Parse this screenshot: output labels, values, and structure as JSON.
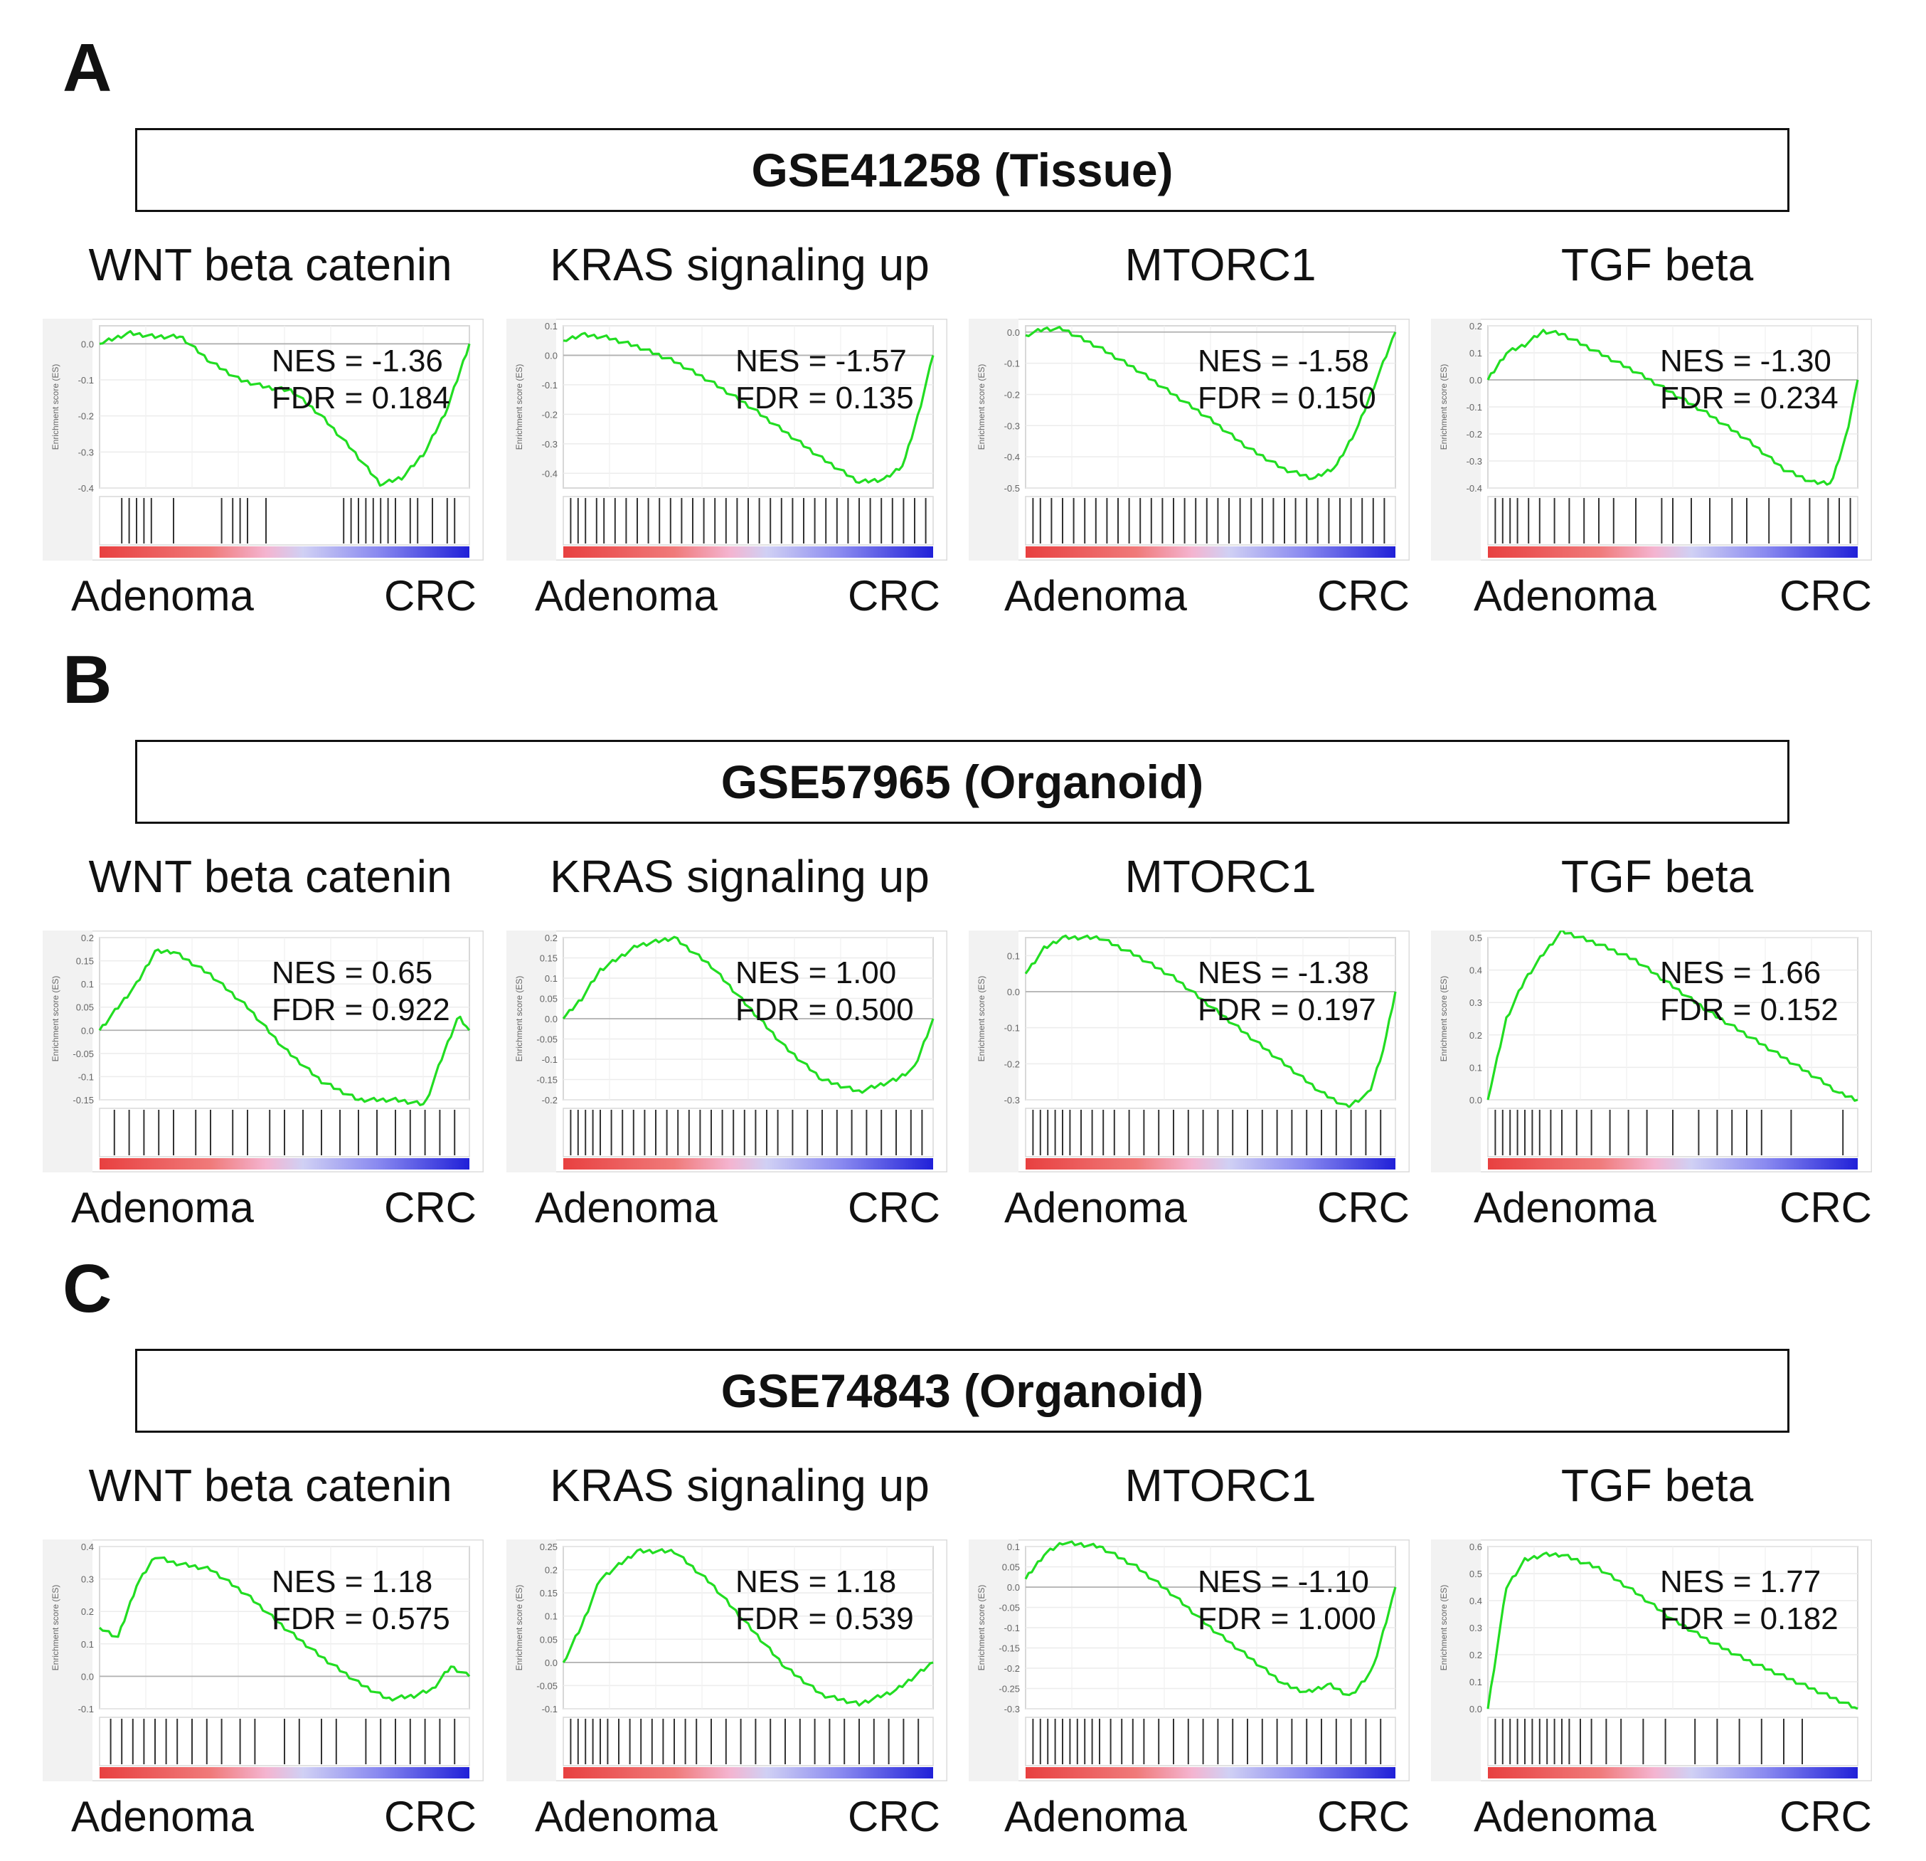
{
  "panels": [
    {
      "letter": "A",
      "dataset": "GSE41258 (Tissue)",
      "plots": [
        {
          "title": "WNT beta catenin",
          "nes": "NES = -1.36",
          "fdr": "FDR = 0.184",
          "left": "Adenoma",
          "right": "CRC"
        },
        {
          "title": "KRAS signaling up",
          "nes": "NES = -1.57",
          "fdr": "FDR = 0.135",
          "left": "Adenoma",
          "right": "CRC"
        },
        {
          "title": "MTORC1",
          "nes": "NES = -1.58",
          "fdr": "FDR = 0.150",
          "left": "Adenoma",
          "right": "CRC"
        },
        {
          "title": "TGF beta",
          "nes": "NES = -1.30",
          "fdr": "FDR = 0.234",
          "left": "Adenoma",
          "right": "CRC"
        }
      ]
    },
    {
      "letter": "B",
      "dataset": "GSE57965 (Organoid)",
      "plots": [
        {
          "title": "WNT beta catenin",
          "nes": "NES = 0.65",
          "fdr": "FDR = 0.922",
          "left": "Adenoma",
          "right": "CRC"
        },
        {
          "title": "KRAS signaling up",
          "nes": "NES = 1.00",
          "fdr": "FDR = 0.500",
          "left": "Adenoma",
          "right": "CRC"
        },
        {
          "title": "MTORC1",
          "nes": "NES = -1.38",
          "fdr": "FDR = 0.197",
          "left": "Adenoma",
          "right": "CRC"
        },
        {
          "title": "TGF beta",
          "nes": "NES = 1.66",
          "fdr": "FDR = 0.152",
          "left": "Adenoma",
          "right": "CRC"
        }
      ]
    },
    {
      "letter": "C",
      "dataset": "GSE74843 (Organoid)",
      "plots": [
        {
          "title": "WNT beta catenin",
          "nes": "NES = 1.18",
          "fdr": "FDR = 0.575",
          "left": "Adenoma",
          "right": "CRC"
        },
        {
          "title": "KRAS signaling up",
          "nes": "NES = 1.18",
          "fdr": "FDR = 0.539",
          "left": "Adenoma",
          "right": "CRC"
        },
        {
          "title": "MTORC1",
          "nes": "NES = -1.10",
          "fdr": "FDR = 1.000",
          "left": "Adenoma",
          "right": "CRC"
        },
        {
          "title": "TGF beta",
          "nes": "NES = 1.77",
          "fdr": "FDR = 0.182",
          "left": "Adenoma",
          "right": "CRC"
        }
      ]
    }
  ],
  "chart_data": [
    {
      "type": "line",
      "panel": "A",
      "title": "WNT beta catenin",
      "ylabel": "Enrichment score (ES)",
      "ylim": [
        -0.4,
        0.05
      ],
      "yticks": [
        0.0,
        -0.1,
        -0.2,
        -0.3,
        -0.4
      ],
      "x": [
        0,
        0.08,
        0.15,
        0.22,
        0.3,
        0.38,
        0.45,
        0.52,
        0.6,
        0.68,
        0.76,
        0.82,
        0.88,
        0.94,
        1.0
      ],
      "es": [
        0.0,
        0.03,
        0.02,
        0.02,
        -0.05,
        -0.1,
        -0.12,
        -0.13,
        -0.2,
        -0.29,
        -0.39,
        -0.37,
        -0.3,
        -0.18,
        0.0
      ],
      "hits": [
        0.06,
        0.08,
        0.1,
        0.12,
        0.14,
        0.2,
        0.33,
        0.36,
        0.38,
        0.4,
        0.45,
        0.66,
        0.68,
        0.7,
        0.72,
        0.74,
        0.76,
        0.78,
        0.8,
        0.84,
        0.86,
        0.9,
        0.94,
        0.96
      ]
    },
    {
      "type": "line",
      "panel": "A",
      "title": "KRAS signaling up",
      "ylabel": "Enrichment score (ES)",
      "ylim": [
        -0.45,
        0.1
      ],
      "yticks": [
        0.1,
        0.0,
        -0.1,
        -0.2,
        -0.3,
        -0.4
      ],
      "x": [
        0,
        0.05,
        0.12,
        0.2,
        0.3,
        0.4,
        0.5,
        0.6,
        0.7,
        0.8,
        0.87,
        0.92,
        0.96,
        1.0
      ],
      "es": [
        0.05,
        0.07,
        0.06,
        0.03,
        -0.02,
        -0.09,
        -0.17,
        -0.26,
        -0.35,
        -0.43,
        -0.42,
        -0.37,
        -0.2,
        0.0
      ],
      "hits": [
        0.02,
        0.04,
        0.06,
        0.09,
        0.11,
        0.14,
        0.17,
        0.2,
        0.23,
        0.26,
        0.29,
        0.32,
        0.35,
        0.38,
        0.41,
        0.44,
        0.47,
        0.5,
        0.53,
        0.56,
        0.59,
        0.62,
        0.65,
        0.68,
        0.71,
        0.74,
        0.77,
        0.8,
        0.83,
        0.86,
        0.89,
        0.92,
        0.95,
        0.98
      ]
    },
    {
      "type": "line",
      "panel": "A",
      "title": "MTORC1",
      "ylabel": "Enrichment score (ES)",
      "ylim": [
        -0.5,
        0.02
      ],
      "yticks": [
        0.0,
        -0.1,
        -0.2,
        -0.3,
        -0.4,
        -0.5
      ],
      "x": [
        0,
        0.05,
        0.1,
        0.2,
        0.3,
        0.4,
        0.5,
        0.6,
        0.7,
        0.78,
        0.84,
        0.9,
        0.95,
        1.0
      ],
      "es": [
        -0.01,
        0.01,
        0.01,
        -0.05,
        -0.12,
        -0.2,
        -0.28,
        -0.37,
        -0.44,
        -0.47,
        -0.43,
        -0.3,
        -0.15,
        0.0
      ],
      "hits": [
        0.02,
        0.04,
        0.07,
        0.1,
        0.13,
        0.16,
        0.19,
        0.22,
        0.25,
        0.28,
        0.31,
        0.34,
        0.37,
        0.4,
        0.43,
        0.46,
        0.49,
        0.52,
        0.55,
        0.58,
        0.61,
        0.64,
        0.67,
        0.7,
        0.73,
        0.76,
        0.79,
        0.82,
        0.85,
        0.88,
        0.91,
        0.94,
        0.97
      ]
    },
    {
      "type": "line",
      "panel": "A",
      "title": "TGF beta",
      "ylabel": "Enrichment score (ES)",
      "ylim": [
        -0.4,
        0.2
      ],
      "yticks": [
        0.2,
        0.1,
        0.0,
        -0.1,
        -0.2,
        -0.3,
        -0.4
      ],
      "x": [
        0,
        0.05,
        0.1,
        0.15,
        0.2,
        0.3,
        0.4,
        0.5,
        0.6,
        0.7,
        0.8,
        0.88,
        0.93,
        0.97,
        1.0
      ],
      "es": [
        0.0,
        0.1,
        0.13,
        0.18,
        0.17,
        0.1,
        0.03,
        -0.05,
        -0.13,
        -0.22,
        -0.33,
        -0.38,
        -0.38,
        -0.2,
        0.0
      ],
      "hits": [
        0.02,
        0.04,
        0.06,
        0.08,
        0.11,
        0.14,
        0.18,
        0.22,
        0.26,
        0.3,
        0.34,
        0.4,
        0.47,
        0.5,
        0.55,
        0.6,
        0.66,
        0.7,
        0.76,
        0.82,
        0.87,
        0.92,
        0.95,
        0.98
      ]
    },
    {
      "type": "line",
      "panel": "B",
      "title": "WNT beta catenin",
      "ylabel": "Enrichment score (ES)",
      "ylim": [
        -0.15,
        0.2
      ],
      "yticks": [
        0.2,
        0.15,
        0.1,
        0.05,
        0.0,
        -0.05,
        -0.1,
        -0.15
      ],
      "x": [
        0,
        0.05,
        0.1,
        0.15,
        0.2,
        0.3,
        0.4,
        0.5,
        0.6,
        0.7,
        0.8,
        0.88,
        0.93,
        0.97,
        1.0
      ],
      "es": [
        0.0,
        0.05,
        0.1,
        0.17,
        0.17,
        0.12,
        0.05,
        -0.04,
        -0.11,
        -0.15,
        -0.15,
        -0.16,
        -0.05,
        0.03,
        0.0
      ],
      "hits": [
        0.04,
        0.08,
        0.12,
        0.16,
        0.2,
        0.26,
        0.3,
        0.36,
        0.4,
        0.46,
        0.5,
        0.55,
        0.6,
        0.65,
        0.7,
        0.75,
        0.8,
        0.84,
        0.88,
        0.92,
        0.96
      ]
    },
    {
      "type": "line",
      "panel": "B",
      "title": "KRAS signaling up",
      "ylabel": "Enrichment score (ES)",
      "ylim": [
        -0.2,
        0.2
      ],
      "yticks": [
        0.2,
        0.15,
        0.1,
        0.05,
        0.0,
        -0.05,
        -0.1,
        -0.15,
        -0.2
      ],
      "x": [
        0,
        0.05,
        0.1,
        0.2,
        0.3,
        0.4,
        0.5,
        0.6,
        0.7,
        0.8,
        0.9,
        0.95,
        1.0
      ],
      "es": [
        0.0,
        0.05,
        0.12,
        0.18,
        0.2,
        0.13,
        0.03,
        -0.07,
        -0.15,
        -0.18,
        -0.15,
        -0.12,
        0.0
      ],
      "hits": [
        0.02,
        0.04,
        0.06,
        0.08,
        0.1,
        0.13,
        0.16,
        0.19,
        0.22,
        0.25,
        0.28,
        0.31,
        0.34,
        0.37,
        0.4,
        0.43,
        0.46,
        0.49,
        0.52,
        0.55,
        0.58,
        0.62,
        0.66,
        0.7,
        0.74,
        0.78,
        0.82,
        0.86,
        0.9,
        0.94,
        0.97
      ]
    },
    {
      "type": "line",
      "panel": "B",
      "title": "MTORC1",
      "ylabel": "Enrichment score (ES)",
      "ylim": [
        -0.3,
        0.15
      ],
      "yticks": [
        0.1,
        0.0,
        -0.1,
        -0.2,
        -0.3
      ],
      "x": [
        0,
        0.05,
        0.1,
        0.2,
        0.3,
        0.4,
        0.5,
        0.6,
        0.7,
        0.8,
        0.87,
        0.93,
        0.97,
        1.0
      ],
      "es": [
        0.05,
        0.12,
        0.15,
        0.15,
        0.1,
        0.04,
        -0.04,
        -0.12,
        -0.2,
        -0.28,
        -0.32,
        -0.28,
        -0.15,
        0.0
      ],
      "hits": [
        0.02,
        0.04,
        0.06,
        0.08,
        0.1,
        0.12,
        0.15,
        0.18,
        0.21,
        0.24,
        0.28,
        0.32,
        0.36,
        0.4,
        0.44,
        0.48,
        0.52,
        0.56,
        0.6,
        0.64,
        0.68,
        0.72,
        0.76,
        0.8,
        0.84,
        0.88,
        0.92,
        0.96
      ]
    },
    {
      "type": "line",
      "panel": "B",
      "title": "TGF beta",
      "ylabel": "Enrichment score (ES)",
      "ylim": [
        0.0,
        0.5
      ],
      "yticks": [
        0.5,
        0.4,
        0.3,
        0.2,
        0.1,
        0.0
      ],
      "x": [
        0,
        0.05,
        0.1,
        0.15,
        0.2,
        0.3,
        0.4,
        0.5,
        0.6,
        0.7,
        0.8,
        0.9,
        0.95,
        1.0
      ],
      "es": [
        0.0,
        0.25,
        0.37,
        0.45,
        0.52,
        0.48,
        0.43,
        0.35,
        0.27,
        0.2,
        0.13,
        0.06,
        0.02,
        0.0
      ],
      "hits": [
        0.02,
        0.04,
        0.06,
        0.08,
        0.1,
        0.12,
        0.14,
        0.17,
        0.2,
        0.24,
        0.28,
        0.33,
        0.38,
        0.43,
        0.5,
        0.57,
        0.62,
        0.66,
        0.7,
        0.74,
        0.82,
        0.96
      ]
    },
    {
      "type": "line",
      "panel": "C",
      "title": "WNT beta catenin",
      "ylabel": "Enrichment score (ES)",
      "ylim": [
        -0.1,
        0.4
      ],
      "yticks": [
        0.4,
        0.3,
        0.2,
        0.1,
        0.0,
        -0.1
      ],
      "x": [
        0,
        0.05,
        0.1,
        0.15,
        0.2,
        0.3,
        0.4,
        0.5,
        0.6,
        0.7,
        0.78,
        0.85,
        0.9,
        0.95,
        1.0
      ],
      "es": [
        0.15,
        0.12,
        0.28,
        0.37,
        0.35,
        0.33,
        0.25,
        0.15,
        0.06,
        -0.02,
        -0.07,
        -0.06,
        -0.04,
        0.03,
        0.0
      ],
      "hits": [
        0.03,
        0.06,
        0.09,
        0.12,
        0.15,
        0.18,
        0.21,
        0.25,
        0.29,
        0.33,
        0.38,
        0.42,
        0.5,
        0.54,
        0.6,
        0.64,
        0.72,
        0.76,
        0.8,
        0.84,
        0.88,
        0.92,
        0.96
      ]
    },
    {
      "type": "line",
      "panel": "C",
      "title": "KRAS signaling up",
      "ylabel": "Enrichment score (ES)",
      "ylim": [
        -0.1,
        0.25
      ],
      "yticks": [
        0.25,
        0.2,
        0.15,
        0.1,
        0.05,
        0.0,
        -0.05,
        -0.1
      ],
      "x": [
        0,
        0.05,
        0.1,
        0.2,
        0.3,
        0.4,
        0.5,
        0.6,
        0.7,
        0.8,
        0.9,
        0.95,
        1.0
      ],
      "es": [
        0.0,
        0.08,
        0.18,
        0.24,
        0.24,
        0.17,
        0.08,
        -0.01,
        -0.07,
        -0.09,
        -0.06,
        -0.03,
        0.0
      ],
      "hits": [
        0.02,
        0.04,
        0.06,
        0.08,
        0.1,
        0.12,
        0.15,
        0.18,
        0.21,
        0.24,
        0.27,
        0.3,
        0.33,
        0.36,
        0.4,
        0.44,
        0.48,
        0.52,
        0.56,
        0.6,
        0.64,
        0.68,
        0.72,
        0.76,
        0.8,
        0.84,
        0.88,
        0.92,
        0.96
      ]
    },
    {
      "type": "line",
      "panel": "C",
      "title": "MTORC1",
      "ylabel": "Enrichment score (ES)",
      "ylim": [
        -0.3,
        0.1
      ],
      "yticks": [
        0.1,
        0.05,
        0.0,
        -0.05,
        -0.1,
        -0.15,
        -0.2,
        -0.25,
        -0.3
      ],
      "x": [
        0,
        0.05,
        0.1,
        0.2,
        0.3,
        0.4,
        0.5,
        0.6,
        0.7,
        0.76,
        0.82,
        0.88,
        0.94,
        1.0
      ],
      "es": [
        0.02,
        0.08,
        0.11,
        0.1,
        0.05,
        -0.02,
        -0.1,
        -0.17,
        -0.24,
        -0.26,
        -0.24,
        -0.27,
        -0.2,
        0.0
      ],
      "hits": [
        0.02,
        0.04,
        0.06,
        0.08,
        0.1,
        0.12,
        0.14,
        0.16,
        0.18,
        0.2,
        0.23,
        0.26,
        0.29,
        0.32,
        0.36,
        0.4,
        0.44,
        0.48,
        0.52,
        0.56,
        0.6,
        0.64,
        0.68,
        0.72,
        0.76,
        0.8,
        0.84,
        0.88,
        0.92,
        0.96
      ]
    },
    {
      "type": "line",
      "panel": "C",
      "title": "TGF beta",
      "ylabel": "Enrichment score (ES)",
      "ylim": [
        0.0,
        0.6
      ],
      "yticks": [
        0.6,
        0.5,
        0.4,
        0.3,
        0.2,
        0.1,
        0.0
      ],
      "x": [
        0,
        0.05,
        0.1,
        0.15,
        0.2,
        0.3,
        0.4,
        0.5,
        0.6,
        0.7,
        0.8,
        0.9,
        1.0
      ],
      "es": [
        0.0,
        0.45,
        0.55,
        0.57,
        0.57,
        0.52,
        0.43,
        0.33,
        0.25,
        0.18,
        0.12,
        0.06,
        0.0
      ],
      "hits": [
        0.02,
        0.04,
        0.06,
        0.08,
        0.1,
        0.12,
        0.14,
        0.16,
        0.18,
        0.2,
        0.22,
        0.25,
        0.28,
        0.32,
        0.36,
        0.42,
        0.48,
        0.56,
        0.62,
        0.68,
        0.74,
        0.8,
        0.85
      ]
    }
  ]
}
